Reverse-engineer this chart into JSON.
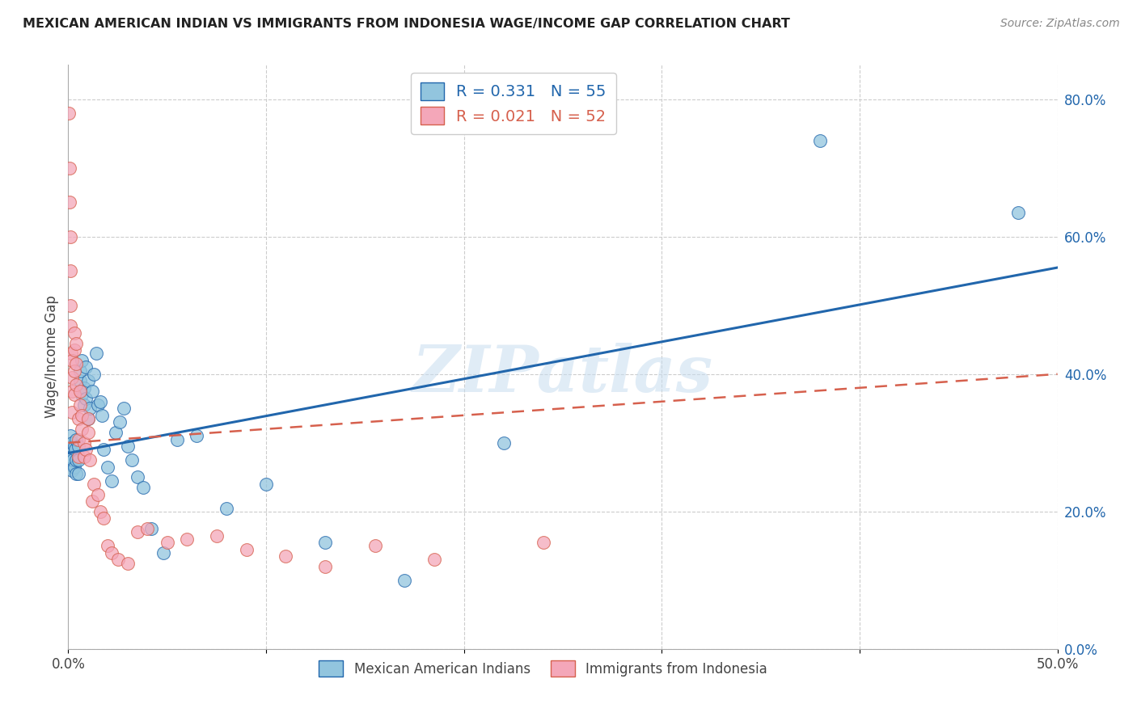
{
  "title": "MEXICAN AMERICAN INDIAN VS IMMIGRANTS FROM INDONESIA WAGE/INCOME GAP CORRELATION CHART",
  "source": "Source: ZipAtlas.com",
  "ylabel": "Wage/Income Gap",
  "watermark": "ZIPatlas",
  "legend_blue_r": "0.331",
  "legend_blue_n": "55",
  "legend_pink_r": "0.021",
  "legend_pink_n": "52",
  "legend_label_blue": "Mexican American Indians",
  "legend_label_pink": "Immigrants from Indonesia",
  "blue_color": "#92c5de",
  "pink_color": "#f4a7b9",
  "line_blue_color": "#2166ac",
  "line_pink_color": "#d6604d",
  "xmin": 0.0,
  "xmax": 0.5,
  "ymin": 0.0,
  "ymax": 0.85,
  "xticks": [
    0.0,
    0.1,
    0.2,
    0.3,
    0.4,
    0.5
  ],
  "xticklabels": [
    "0.0%",
    "",
    "",
    "",
    "",
    "50.0%"
  ],
  "yticks": [
    0.0,
    0.2,
    0.4,
    0.6,
    0.8
  ],
  "yticklabels": [
    "0.0%",
    "20.0%",
    "40.0%",
    "60.0%",
    "80.0%"
  ],
  "blue_scatter_x": [
    0.0005,
    0.0008,
    0.001,
    0.001,
    0.0015,
    0.002,
    0.002,
    0.0025,
    0.003,
    0.003,
    0.0035,
    0.004,
    0.004,
    0.004,
    0.005,
    0.005,
    0.005,
    0.006,
    0.006,
    0.007,
    0.007,
    0.008,
    0.008,
    0.009,
    0.009,
    0.01,
    0.01,
    0.011,
    0.012,
    0.013,
    0.014,
    0.015,
    0.016,
    0.017,
    0.018,
    0.02,
    0.022,
    0.024,
    0.026,
    0.028,
    0.03,
    0.032,
    0.035,
    0.038,
    0.042,
    0.048,
    0.055,
    0.065,
    0.08,
    0.1,
    0.13,
    0.17,
    0.22,
    0.38,
    0.48
  ],
  "blue_scatter_y": [
    0.285,
    0.295,
    0.27,
    0.31,
    0.28,
    0.26,
    0.3,
    0.275,
    0.265,
    0.295,
    0.29,
    0.255,
    0.275,
    0.305,
    0.255,
    0.275,
    0.295,
    0.39,
    0.405,
    0.37,
    0.42,
    0.355,
    0.38,
    0.41,
    0.365,
    0.39,
    0.335,
    0.35,
    0.375,
    0.4,
    0.43,
    0.355,
    0.36,
    0.34,
    0.29,
    0.265,
    0.245,
    0.315,
    0.33,
    0.35,
    0.295,
    0.275,
    0.25,
    0.235,
    0.175,
    0.14,
    0.305,
    0.31,
    0.205,
    0.24,
    0.155,
    0.1,
    0.3,
    0.74,
    0.635
  ],
  "pink_scatter_x": [
    0.0003,
    0.0005,
    0.0008,
    0.001,
    0.001,
    0.001,
    0.001,
    0.0015,
    0.002,
    0.002,
    0.002,
    0.002,
    0.003,
    0.003,
    0.003,
    0.003,
    0.004,
    0.004,
    0.004,
    0.005,
    0.005,
    0.005,
    0.006,
    0.006,
    0.007,
    0.007,
    0.008,
    0.008,
    0.009,
    0.01,
    0.01,
    0.011,
    0.012,
    0.013,
    0.015,
    0.016,
    0.018,
    0.02,
    0.022,
    0.025,
    0.03,
    0.035,
    0.04,
    0.05,
    0.06,
    0.075,
    0.09,
    0.11,
    0.13,
    0.155,
    0.185,
    0.24
  ],
  "pink_scatter_y": [
    0.78,
    0.7,
    0.65,
    0.6,
    0.55,
    0.5,
    0.47,
    0.43,
    0.42,
    0.395,
    0.375,
    0.345,
    0.46,
    0.435,
    0.405,
    0.37,
    0.445,
    0.415,
    0.385,
    0.335,
    0.305,
    0.28,
    0.375,
    0.355,
    0.34,
    0.32,
    0.3,
    0.28,
    0.29,
    0.315,
    0.335,
    0.275,
    0.215,
    0.24,
    0.225,
    0.2,
    0.19,
    0.15,
    0.14,
    0.13,
    0.125,
    0.17,
    0.175,
    0.155,
    0.16,
    0.165,
    0.145,
    0.135,
    0.12,
    0.15,
    0.13,
    0.155
  ],
  "blue_line_x0": 0.0,
  "blue_line_x1": 0.5,
  "blue_line_y0": 0.285,
  "blue_line_y1": 0.555,
  "pink_line_x0": 0.0,
  "pink_line_x1": 0.5,
  "pink_line_y0": 0.3,
  "pink_line_y1": 0.4
}
